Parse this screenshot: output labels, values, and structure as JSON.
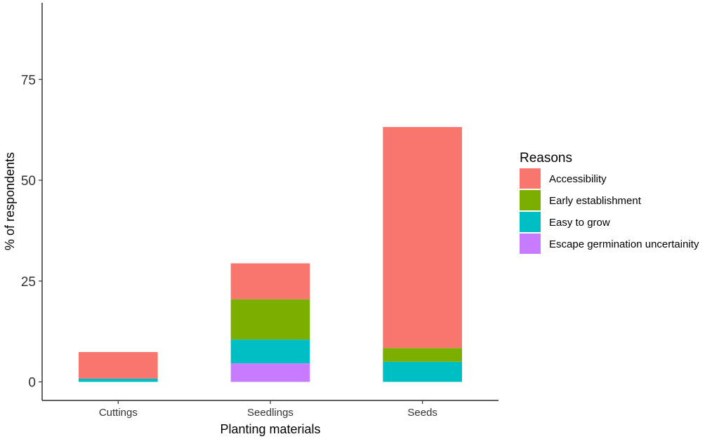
{
  "chart_data": {
    "type": "bar",
    "stacked": true,
    "categories": [
      "Cuttings",
      "Seedlings",
      "Seeds"
    ],
    "series": [
      {
        "name": "Accessibility",
        "color": "#F8766D",
        "values": [
          6.6,
          8.9,
          54.8
        ]
      },
      {
        "name": "Early establishment",
        "color": "#7CAE00",
        "values": [
          0,
          10.0,
          3.4
        ]
      },
      {
        "name": "Easy to grow",
        "color": "#00BFC4",
        "values": [
          0.8,
          5.9,
          5.0
        ]
      },
      {
        "name": "Escape germination uncertainity",
        "color": "#C77CFF",
        "values": [
          0,
          4.6,
          0
        ]
      }
    ],
    "xlabel": "Planting materials",
    "ylabel": "% of respondents",
    "y_ticks": [
      0,
      25,
      50,
      75
    ],
    "ylim": [
      -4.6,
      94
    ],
    "legend_title": "Reasons",
    "legend_position": "right",
    "grid": false
  }
}
